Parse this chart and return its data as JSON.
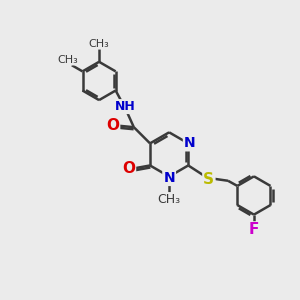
{
  "bg_color": "#ebebeb",
  "bond_color": "#3a3a3a",
  "bond_width": 1.8,
  "atom_colors": {
    "N": "#0000cc",
    "O": "#dd0000",
    "S": "#bbbb00",
    "F": "#cc00cc",
    "C": "#3a3a3a"
  },
  "font_size": 9,
  "xlim": [
    0,
    10
  ],
  "ylim": [
    0,
    10
  ]
}
